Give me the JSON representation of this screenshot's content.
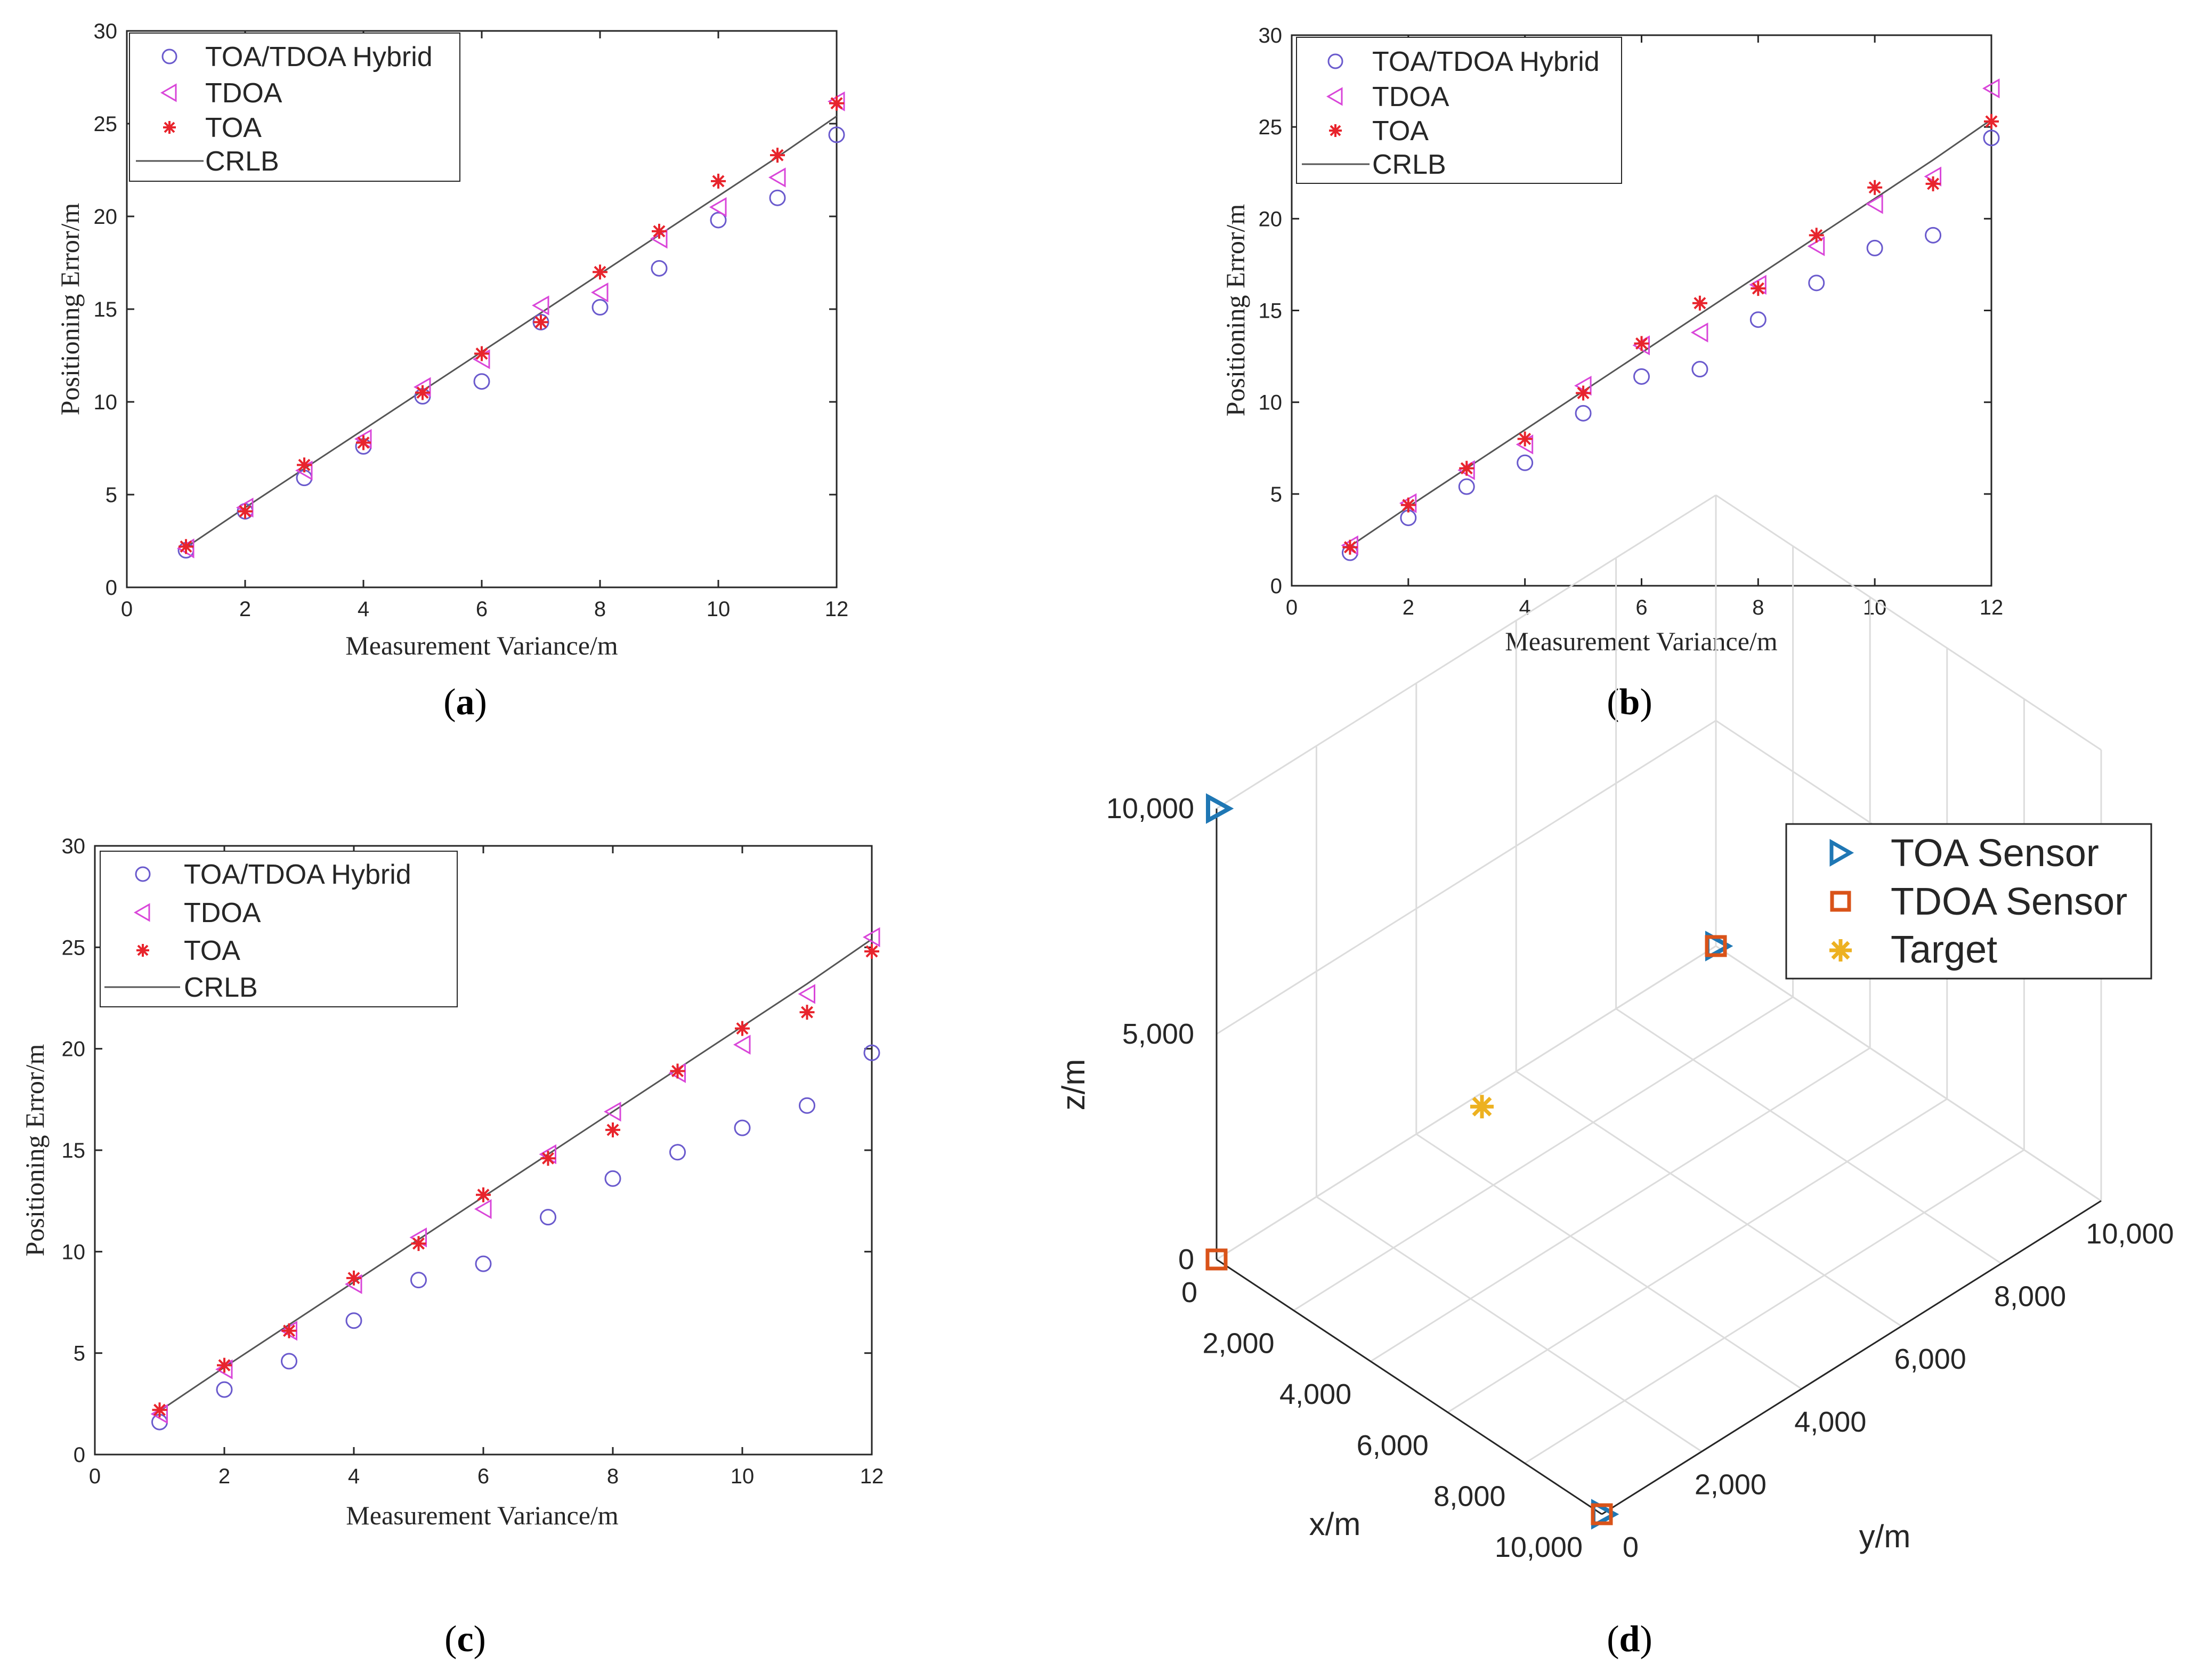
{
  "colors": {
    "hybrid": "#6a5acd",
    "tdoa": "#d946d9",
    "toa": "#e8242c",
    "crlb": "#555555",
    "toa_sensor": "#1f77b4",
    "tdoa_sensor": "#d95319",
    "target": "#edb120"
  },
  "chart_data": [
    {
      "id": "a",
      "type": "scatter",
      "caption_paren_open": "(",
      "caption_letter": "a",
      "caption_paren_close": ")",
      "xlabel": "Measurement Variance/m",
      "ylabel": "Positioning Error/m",
      "xlim": [
        0,
        12
      ],
      "ylim": [
        0,
        30
      ],
      "xticks": [
        0,
        2,
        4,
        6,
        8,
        10,
        12
      ],
      "yticks": [
        0,
        5,
        10,
        15,
        20,
        25,
        30
      ],
      "legend": [
        "TOA/TDOA Hybrid",
        "TDOA",
        "TOA",
        "CRLB"
      ],
      "x": [
        1,
        2,
        3,
        4,
        5,
        6,
        7,
        8,
        9,
        10,
        11,
        12
      ],
      "series": [
        {
          "name": "TOA/TDOA Hybrid",
          "marker": "circle",
          "values": [
            2.0,
            4.1,
            5.9,
            7.6,
            10.3,
            11.1,
            14.3,
            15.1,
            17.2,
            19.8,
            21.0,
            24.4
          ]
        },
        {
          "name": "TDOA",
          "marker": "triangle-left",
          "values": [
            2.1,
            4.3,
            6.3,
            8.0,
            10.8,
            12.3,
            15.2,
            15.9,
            18.8,
            20.5,
            22.1,
            26.2
          ]
        },
        {
          "name": "TOA",
          "marker": "star",
          "values": [
            2.2,
            4.1,
            6.6,
            7.8,
            10.5,
            12.6,
            14.3,
            17.0,
            19.2,
            21.9,
            23.3,
            26.1
          ]
        },
        {
          "name": "CRLB",
          "marker": "line",
          "values": [
            2.15,
            4.3,
            6.4,
            8.5,
            10.6,
            12.7,
            14.8,
            16.9,
            19.0,
            21.1,
            23.2,
            25.4
          ]
        }
      ]
    },
    {
      "id": "b",
      "type": "scatter",
      "caption_paren_open": "(",
      "caption_letter": "b",
      "caption_paren_close": ")",
      "xlabel": "Measurement Variance/m",
      "ylabel": "Positioning Error/m",
      "xlim": [
        0,
        12
      ],
      "ylim": [
        0,
        30
      ],
      "xticks": [
        0,
        2,
        4,
        6,
        8,
        10,
        12
      ],
      "yticks": [
        0,
        5,
        10,
        15,
        20,
        25,
        30
      ],
      "legend": [
        "TOA/TDOA Hybrid",
        "TDOA",
        "TOA",
        "CRLB"
      ],
      "x": [
        1,
        2,
        3,
        4,
        5,
        6,
        7,
        8,
        9,
        10,
        11,
        12
      ],
      "series": [
        {
          "name": "TOA/TDOA Hybrid",
          "marker": "circle",
          "values": [
            1.8,
            3.7,
            5.4,
            6.7,
            9.4,
            11.4,
            11.8,
            14.5,
            16.5,
            18.4,
            19.1,
            24.4
          ]
        },
        {
          "name": "TDOA",
          "marker": "triangle-left",
          "values": [
            2.2,
            4.5,
            6.3,
            7.7,
            10.9,
            13.1,
            13.8,
            16.4,
            18.5,
            20.8,
            22.3,
            27.1
          ]
        },
        {
          "name": "TOA",
          "marker": "star",
          "values": [
            2.1,
            4.4,
            6.4,
            8.0,
            10.5,
            13.2,
            15.4,
            16.2,
            19.1,
            21.7,
            21.9,
            25.3
          ]
        },
        {
          "name": "CRLB",
          "marker": "line",
          "values": [
            2.15,
            4.3,
            6.4,
            8.5,
            10.6,
            12.7,
            14.8,
            16.9,
            19.0,
            21.1,
            23.2,
            25.4
          ]
        }
      ]
    },
    {
      "id": "c",
      "type": "scatter",
      "caption_paren_open": "(",
      "caption_letter": "c",
      "caption_paren_close": ")",
      "xlabel": "Measurement Variance/m",
      "ylabel": "Positioning Error/m",
      "xlim": [
        0,
        12
      ],
      "ylim": [
        0,
        30
      ],
      "xticks": [
        0,
        2,
        4,
        6,
        8,
        10,
        12
      ],
      "yticks": [
        0,
        5,
        10,
        15,
        20,
        25,
        30
      ],
      "legend": [
        "TOA/TDOA Hybrid",
        "TDOA",
        "TOA",
        "CRLB"
      ],
      "x": [
        1,
        2,
        3,
        4,
        5,
        6,
        7,
        8,
        9,
        10,
        11,
        12
      ],
      "series": [
        {
          "name": "TOA/TDOA Hybrid",
          "marker": "circle",
          "values": [
            1.6,
            3.2,
            4.6,
            6.6,
            8.6,
            9.4,
            11.7,
            13.6,
            14.9,
            16.1,
            17.2,
            19.8
          ]
        },
        {
          "name": "TDOA",
          "marker": "triangle-left",
          "values": [
            2.0,
            4.2,
            6.1,
            8.4,
            10.7,
            12.1,
            14.8,
            16.9,
            18.8,
            20.2,
            22.7,
            25.5
          ]
        },
        {
          "name": "TOA",
          "marker": "star",
          "values": [
            2.2,
            4.4,
            6.1,
            8.7,
            10.4,
            12.8,
            14.6,
            16.0,
            18.9,
            21.0,
            21.8,
            24.8
          ]
        },
        {
          "name": "CRLB",
          "marker": "line",
          "values": [
            2.15,
            4.3,
            6.4,
            8.5,
            10.6,
            12.7,
            14.8,
            16.9,
            19.0,
            21.1,
            23.2,
            25.4
          ]
        }
      ]
    },
    {
      "id": "d",
      "type": "scatter3d",
      "caption_paren_open": "(",
      "caption_letter": "d",
      "caption_paren_close": ")",
      "xlabel": "x/m",
      "ylabel": "y/m",
      "zlabel": "z/m",
      "xlim": [
        0,
        10000
      ],
      "ylim": [
        0,
        10000
      ],
      "zlim": [
        0,
        10000
      ],
      "xtick_labels": [
        "0",
        "2,000",
        "4,000",
        "6,000",
        "8,000",
        "10,000"
      ],
      "ytick_labels": [
        "0",
        "2,000",
        "4,000",
        "6,000",
        "8,000",
        "10,000"
      ],
      "ztick_labels": [
        "0",
        "5,000",
        "10,000"
      ],
      "legend": [
        "TOA Sensor",
        "TDOA Sensor",
        "Target"
      ],
      "series": [
        {
          "name": "TOA Sensor",
          "marker": "triangle-right",
          "points": [
            [
              0,
              0,
              10000
            ],
            [
              10000,
              0,
              0
            ],
            [
              0,
              10000,
              0
            ]
          ]
        },
        {
          "name": "TDOA Sensor",
          "marker": "square",
          "points": [
            [
              0,
              0,
              0
            ],
            [
              10000,
              0,
              0
            ],
            [
              0,
              10000,
              0
            ]
          ]
        },
        {
          "name": "Target",
          "marker": "asterisk",
          "points": [
            [
              3000,
              3000,
              3000
            ]
          ]
        }
      ]
    }
  ]
}
